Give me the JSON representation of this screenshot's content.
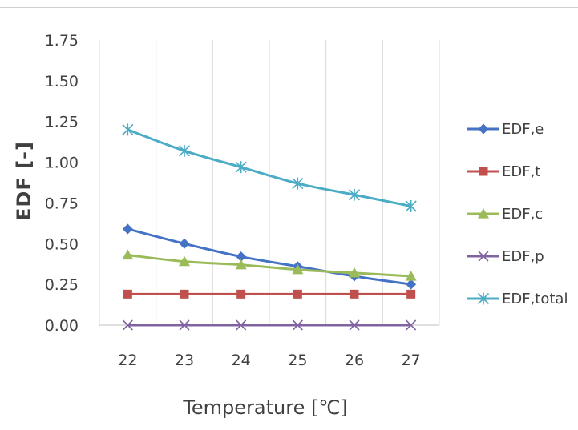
{
  "chart_data": {
    "type": "line",
    "title": "",
    "xlabel": "Temperature [℃]",
    "ylabel": "EDF [-]",
    "x": [
      22,
      23,
      24,
      25,
      26,
      27
    ],
    "x_tick_labels": [
      "22",
      "23",
      "24",
      "25",
      "26",
      "27"
    ],
    "ylim": [
      0,
      1.75
    ],
    "y_ticks": [
      0,
      0.25,
      0.5,
      0.75,
      1.0,
      1.25,
      1.5,
      1.75
    ],
    "y_tick_labels": [
      "0.00",
      "0.25",
      "0.50",
      "0.75",
      "1.00",
      "1.25",
      "1.50",
      "1.75"
    ],
    "grid": "vertical",
    "legend_position": "right",
    "series": [
      {
        "name": "EDF,e",
        "marker": "diamond",
        "color": "#4472c4",
        "values": [
          0.59,
          0.5,
          0.42,
          0.36,
          0.3,
          0.25
        ]
      },
      {
        "name": "EDF,t",
        "marker": "square",
        "color": "#c0504d",
        "values": [
          0.19,
          0.19,
          0.19,
          0.19,
          0.19,
          0.19
        ]
      },
      {
        "name": "EDF,c",
        "marker": "triangle",
        "color": "#9bbb59",
        "values": [
          0.43,
          0.39,
          0.37,
          0.34,
          0.32,
          0.3
        ]
      },
      {
        "name": "EDF,p",
        "marker": "x",
        "color": "#8064a2",
        "values": [
          0.0,
          0.0,
          0.0,
          0.0,
          0.0,
          0.0
        ]
      },
      {
        "name": "EDF,total",
        "marker": "star",
        "color": "#4bacc6",
        "values": [
          1.2,
          1.07,
          0.97,
          0.87,
          0.8,
          0.73
        ]
      }
    ]
  }
}
